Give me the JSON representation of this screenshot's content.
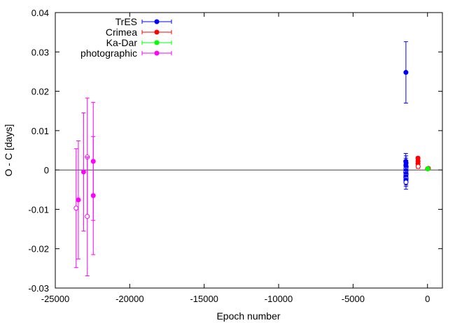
{
  "chart_data": {
    "type": "scatter",
    "xlabel": "Epoch number",
    "ylabel": "O - C  [days]",
    "xlim": [
      -25000,
      1000
    ],
    "ylim": [
      -0.03,
      0.04
    ],
    "x_ticks": [
      -25000,
      -20000,
      -15000,
      -10000,
      -5000,
      0
    ],
    "y_ticks": [
      -0.03,
      -0.02,
      -0.01,
      0,
      0.01,
      0.02,
      0.03,
      0.04
    ],
    "x_tick_labels": [
      "-25000",
      "-20000",
      "-15000",
      "-10000",
      "-5000",
      "0"
    ],
    "y_tick_labels": [
      "-0.03",
      "-0.02",
      "-0.01",
      "0",
      "0.01",
      "0.02",
      "0.03",
      "0.04"
    ],
    "reference_line_y": 0,
    "legend_position": "top-left",
    "series": [
      {
        "name": "TrES",
        "color": "#0000ff",
        "points": [
          {
            "x": -1450,
            "y": 0.0248,
            "err": 0.0078,
            "filled": true
          },
          {
            "x": -1460,
            "y": 0.0022,
            "err": 0.002,
            "filled": true
          },
          {
            "x": -1440,
            "y": 0.0018,
            "err": 0.0018,
            "filled": true
          },
          {
            "x": -1455,
            "y": 0.0012,
            "err": 0.0018,
            "filled": true
          },
          {
            "x": -1435,
            "y": 0.0008,
            "err": 0.0016,
            "filled": true
          },
          {
            "x": -1450,
            "y": 0.0003,
            "err": 0.0016,
            "filled": false
          },
          {
            "x": -1445,
            "y": -0.0002,
            "err": 0.0016,
            "filled": true
          },
          {
            "x": -1460,
            "y": -0.0006,
            "err": 0.0015,
            "filled": false
          },
          {
            "x": -1440,
            "y": -0.001,
            "err": 0.0016,
            "filled": true
          },
          {
            "x": -1450,
            "y": -0.0014,
            "err": 0.0016,
            "filled": false
          },
          {
            "x": -1455,
            "y": -0.0018,
            "err": 0.0016,
            "filled": true
          },
          {
            "x": -1440,
            "y": -0.0022,
            "err": 0.0016,
            "filled": false
          },
          {
            "x": -1450,
            "y": -0.0026,
            "err": 0.0016,
            "filled": true
          },
          {
            "x": -1445,
            "y": -0.0031,
            "err": 0.0018,
            "filled": false
          }
        ]
      },
      {
        "name": "Crimea",
        "color": "#ff0000",
        "points": [
          {
            "x": -640,
            "y": 0.003,
            "err": 0.0004,
            "filled": true
          },
          {
            "x": -635,
            "y": 0.0022,
            "err": 0.0004,
            "filled": true
          },
          {
            "x": -640,
            "y": 0.0016,
            "err": 0.0004,
            "filled": true
          },
          {
            "x": -630,
            "y": 0.0009,
            "err": 0.0005,
            "filled": false
          },
          {
            "x": 0,
            "y": 0.0003,
            "err": 0.0003,
            "filled": false
          },
          {
            "x": 60,
            "y": 0.0004,
            "err": 0.0003,
            "filled": false
          }
        ]
      },
      {
        "name": "Ka-Dar",
        "color": "#00ff00",
        "points": [
          {
            "x": 20,
            "y": 0.0003,
            "err": 0.0004,
            "filled": true
          }
        ]
      },
      {
        "name": "photographic",
        "color": "#ff00ff",
        "points": [
          {
            "x": -23600,
            "y": -0.0097,
            "err": 0.0151,
            "filled": false
          },
          {
            "x": -23450,
            "y": -0.0076,
            "err": 0.015,
            "filled": true
          },
          {
            "x": -23100,
            "y": -0.0005,
            "err": 0.015,
            "filled": true
          },
          {
            "x": -22850,
            "y": 0.0033,
            "err": 0.015,
            "filled": false
          },
          {
            "x": -22850,
            "y": -0.0118,
            "err": 0.0151,
            "filled": false
          },
          {
            "x": -22450,
            "y": 0.0022,
            "err": 0.015,
            "filled": true
          },
          {
            "x": -22450,
            "y": -0.0065,
            "err": 0.015,
            "filled": true
          }
        ]
      }
    ]
  }
}
